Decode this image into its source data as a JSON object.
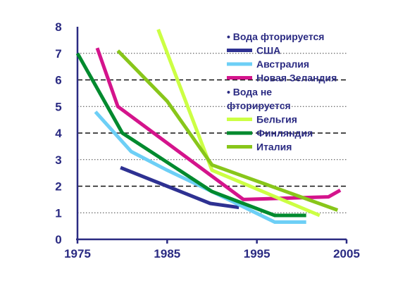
{
  "chart_data": {
    "type": "line",
    "title": "",
    "xlabel": "",
    "ylabel": "",
    "xlim": [
      1975,
      2005
    ],
    "ylim": [
      0,
      8
    ],
    "x_ticks": [
      "1975",
      "1985",
      "1995",
      "2005"
    ],
    "y_ticks": [
      "0",
      "1",
      "2",
      "3",
      "4",
      "5",
      "6",
      "7",
      "8"
    ],
    "grid": {
      "dashed_bold": [
        2,
        4,
        6
      ],
      "dotted": [
        1,
        3,
        5,
        7
      ]
    },
    "legend": {
      "placement": "top-right",
      "groups": [
        {
          "heading": "• Вода фторируется",
          "heading_lines": [
            "• Вода фторируется"
          ],
          "series_indexes": [
            0,
            1,
            2
          ]
        },
        {
          "heading": "• Вода не фторируется",
          "heading_lines": [
            "• Вода не",
            "фторируется"
          ],
          "series_indexes": [
            3,
            4,
            5
          ]
        }
      ]
    },
    "series": [
      {
        "name": "США",
        "color": "#2e3192",
        "points": [
          [
            1979.8,
            2.7
          ],
          [
            1985,
            2.0
          ],
          [
            1989.8,
            1.35
          ],
          [
            1993,
            1.2
          ]
        ]
      },
      {
        "name": "Австралия",
        "color": "#6dcff6",
        "points": [
          [
            1977,
            4.8
          ],
          [
            1981,
            3.3
          ],
          [
            1985,
            2.6
          ],
          [
            1990,
            1.8
          ],
          [
            1997,
            0.65
          ],
          [
            2000.5,
            0.65
          ]
        ]
      },
      {
        "name": "Новая Зеландия",
        "color": "#d4148c",
        "points": [
          [
            1977.2,
            7.2
          ],
          [
            1979.5,
            5.0
          ],
          [
            1993.5,
            1.5
          ],
          [
            2003,
            1.6
          ],
          [
            2004.3,
            1.85
          ]
        ]
      },
      {
        "name": "Бельгия",
        "color": "#ccff44",
        "points": [
          [
            1984,
            7.9
          ],
          [
            1990,
            2.6
          ],
          [
            2002,
            0.9
          ]
        ]
      },
      {
        "name": "Финляндия",
        "color": "#008a2e",
        "points": [
          [
            1975,
            7.0
          ],
          [
            1980,
            4.0
          ],
          [
            1990,
            1.8
          ],
          [
            1997,
            0.9
          ],
          [
            2000.5,
            0.9
          ]
        ]
      },
      {
        "name": "Италия",
        "color": "#88c61a",
        "points": [
          [
            1979.5,
            7.1
          ],
          [
            1985,
            5.2
          ],
          [
            1990,
            2.8
          ],
          [
            2004,
            1.1
          ]
        ]
      }
    ]
  }
}
